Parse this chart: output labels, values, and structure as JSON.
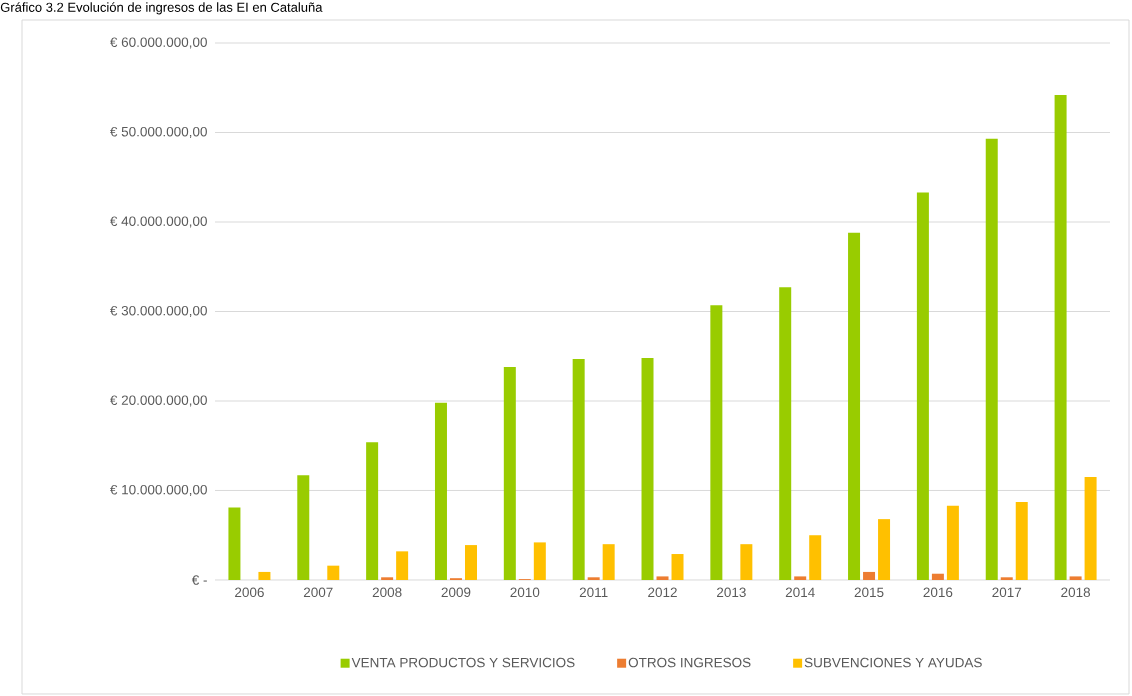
{
  "chart_data": {
    "type": "bar",
    "title": "Gráfico 3.2 Evolución de ingresos de las EI en Cataluña",
    "categories": [
      "2006",
      "2007",
      "2008",
      "2009",
      "2010",
      "2011",
      "2012",
      "2013",
      "2014",
      "2015",
      "2016",
      "2017",
      "2018"
    ],
    "series": [
      {
        "name": "VENTA PRODUCTOS Y SERVICIOS",
        "color": "#99cc00",
        "values": [
          8100000,
          11700000,
          15400000,
          19800000,
          23800000,
          24700000,
          24800000,
          30700000,
          32700000,
          38800000,
          43300000,
          49300000,
          54200000
        ]
      },
      {
        "name": "OTROS INGRESOS",
        "color": "#ed7d31",
        "values": [
          null,
          null,
          300000,
          200000,
          100000,
          300000,
          400000,
          null,
          400000,
          900000,
          700000,
          300000,
          400000
        ]
      },
      {
        "name": "SUBVENCIONES Y AYUDAS",
        "color": "#ffc000",
        "values": [
          900000,
          1600000,
          3200000,
          3900000,
          4200000,
          4000000,
          2900000,
          4000000,
          5000000,
          6800000,
          8300000,
          8700000,
          11500000
        ]
      }
    ],
    "ylim": [
      0,
      60000000
    ],
    "yticks": [
      {
        "value": 0,
        "label": "€ -"
      },
      {
        "value": 10000000,
        "label": "€ 10.000.000,00"
      },
      {
        "value": 20000000,
        "label": "€ 20.000.000,00"
      },
      {
        "value": 30000000,
        "label": "€ 30.000.000,00"
      },
      {
        "value": 40000000,
        "label": "€ 40.000.000,00"
      },
      {
        "value": 50000000,
        "label": "€ 50.000.000,00"
      },
      {
        "value": 60000000,
        "label": "€ 60.000.000,00"
      }
    ],
    "grid": "y",
    "legend": "bottom"
  }
}
